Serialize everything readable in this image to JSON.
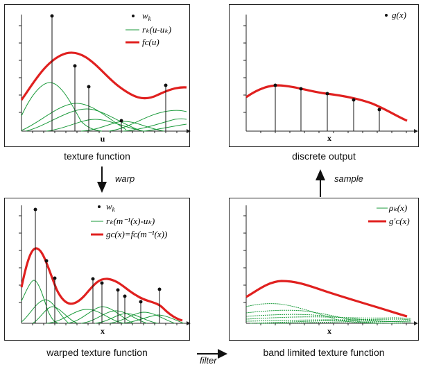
{
  "panels": {
    "texture": {
      "caption": "texture function",
      "axis_label": "u",
      "legend": {
        "weights": "w",
        "weights_sub": "k",
        "kernels": "rₖ(u-uₖ)",
        "function": "fᴄ(u)"
      }
    },
    "output": {
      "caption": "discrete output",
      "axis_label": "x",
      "legend": {
        "samples": "g(x)"
      }
    },
    "warped": {
      "caption": "warped texture function",
      "axis_label": "x",
      "legend": {
        "weights": "w",
        "weights_sub": "k",
        "kernels": "rₖ(m⁻¹(x)-uₖ)",
        "function": "gᴄ(x)=fᴄ(m⁻¹(x))"
      }
    },
    "bandlimited": {
      "caption": "band limited texture function",
      "axis_label": "x",
      "legend": {
        "kernels": "ρₖ(x)",
        "function": "g′ᴄ(x)"
      }
    }
  },
  "arrows": {
    "warp": "warp",
    "sample": "sample",
    "filter": "filter"
  },
  "colors": {
    "red": "#e0201f",
    "green": "#1a9a3a",
    "black": "#111111",
    "frame": "#222222"
  }
}
